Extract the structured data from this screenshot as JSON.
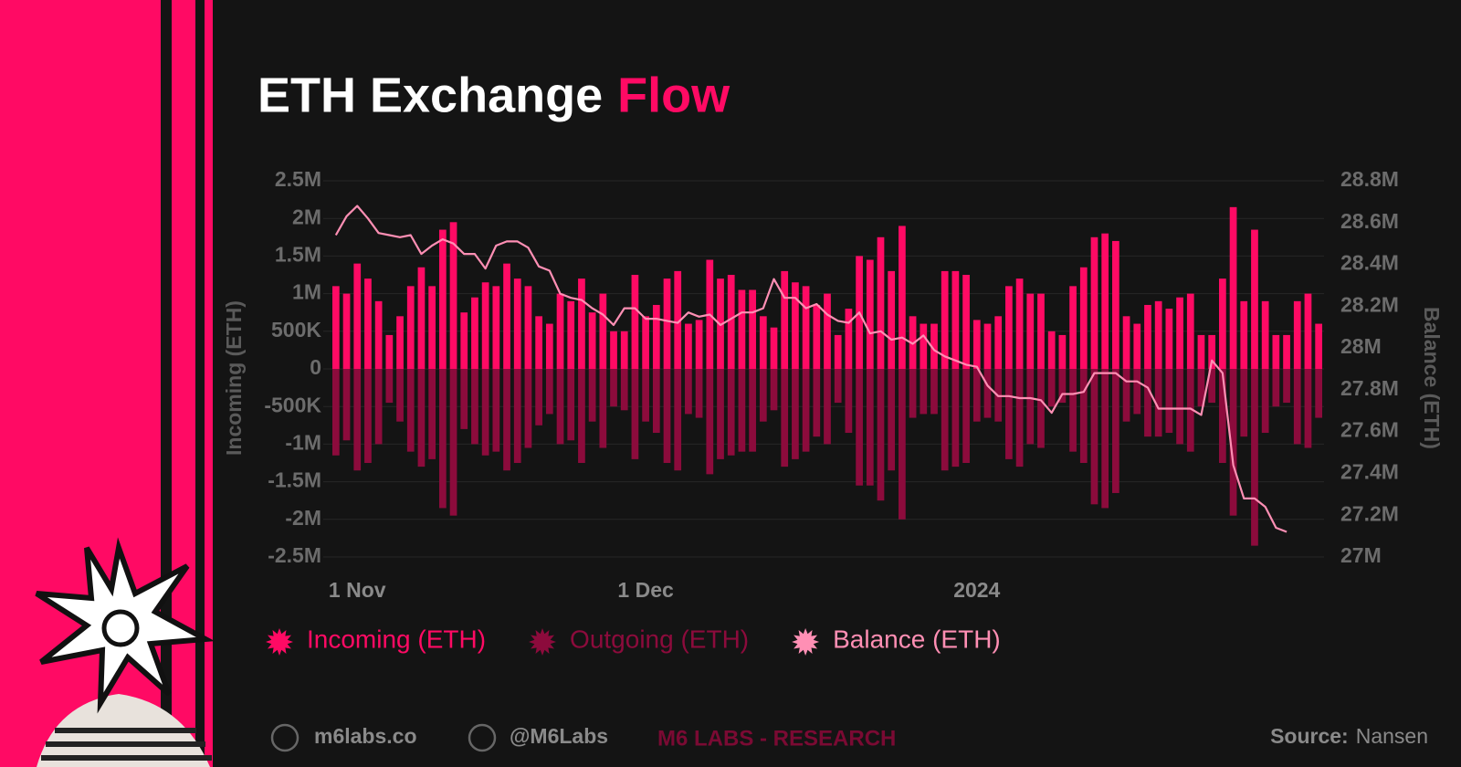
{
  "chart_data": {
    "type": "bar",
    "title": {
      "text": "ETH Exchange",
      "highlight": "Flow"
    },
    "y_label": "Incoming (ETH)",
    "y2_label": "Balance (ETH)",
    "categories": [
      null,
      null,
      "1 Nov",
      null,
      null,
      null,
      null,
      null,
      null,
      null,
      null,
      null,
      null,
      null,
      null,
      null,
      null,
      null,
      null,
      null,
      null,
      null,
      null,
      null,
      null,
      null,
      null,
      null,
      null,
      "1 Dec",
      null,
      null,
      null,
      null,
      null,
      null,
      null,
      null,
      null,
      null,
      null,
      null,
      null,
      null,
      null,
      null,
      null,
      null,
      null,
      null,
      null,
      null,
      null,
      null,
      null,
      null,
      null,
      null,
      null,
      null,
      "2024",
      null,
      null,
      null,
      null,
      null,
      null,
      null,
      null,
      null,
      null,
      null,
      null,
      null,
      null,
      null,
      null,
      null,
      null,
      null,
      null,
      null,
      null,
      null,
      null,
      null,
      null,
      null,
      null,
      null,
      null,
      null,
      null
    ],
    "series": [
      {
        "name": "Incoming (ETH)",
        "color": "#ff0a64",
        "values": [
          1100000,
          1000000,
          1400000,
          1200000,
          900000,
          450000,
          700000,
          1100000,
          1350000,
          1100000,
          1850000,
          1950000,
          750000,
          950000,
          1150000,
          1100000,
          1400000,
          1200000,
          1100000,
          700000,
          600000,
          1000000,
          900000,
          1200000,
          750000,
          1000000,
          500000,
          500000,
          1250000,
          700000,
          850000,
          1200000,
          1300000,
          600000,
          650000,
          1450000,
          1200000,
          1250000,
          1050000,
          1050000,
          700000,
          550000,
          1300000,
          1150000,
          1100000,
          850000,
          1000000,
          450000,
          800000,
          1500000,
          1450000,
          1750000,
          1300000,
          1900000,
          700000,
          600000,
          600000,
          1300000,
          1300000,
          1250000,
          650000,
          600000,
          700000,
          1100000,
          1200000,
          1000000,
          1000000,
          500000,
          450000,
          1100000,
          1350000,
          1750000,
          1800000,
          1700000,
          700000,
          600000,
          850000,
          900000,
          800000,
          950000,
          1000000,
          450000,
          450000,
          1200000,
          2150000,
          900000,
          1850000,
          900000,
          450000,
          450000,
          900000,
          1000000,
          600000
        ]
      },
      {
        "name": "Outgoing (ETH)",
        "color": "#8c0b3c",
        "values": [
          -1150000,
          -950000,
          -1350000,
          -1250000,
          -1000000,
          -450000,
          -700000,
          -1100000,
          -1300000,
          -1200000,
          -1850000,
          -1950000,
          -800000,
          -1000000,
          -1150000,
          -1100000,
          -1350000,
          -1250000,
          -1050000,
          -750000,
          -600000,
          -1000000,
          -950000,
          -1250000,
          -700000,
          -1050000,
          -500000,
          -550000,
          -1200000,
          -700000,
          -850000,
          -1250000,
          -1350000,
          -600000,
          -650000,
          -1400000,
          -1200000,
          -1150000,
          -1100000,
          -1100000,
          -700000,
          -550000,
          -1300000,
          -1200000,
          -1100000,
          -900000,
          -1000000,
          -450000,
          -850000,
          -1550000,
          -1550000,
          -1750000,
          -1350000,
          -2000000,
          -650000,
          -600000,
          -600000,
          -1350000,
          -1300000,
          -1250000,
          -700000,
          -650000,
          -700000,
          -1200000,
          -1300000,
          -1000000,
          -1050000,
          -500000,
          -450000,
          -1100000,
          -1250000,
          -1800000,
          -1850000,
          -1650000,
          -700000,
          -600000,
          -900000,
          -900000,
          -850000,
          -1000000,
          -1100000,
          -500000,
          -450000,
          -1250000,
          -1950000,
          -900000,
          -2350000,
          -850000,
          -500000,
          -450000,
          -1000000,
          -1050000,
          -650000
        ]
      },
      {
        "name": "Balance (ETH)",
        "color": "#ff8fb4",
        "axis": "y2",
        "values": [
          28540000,
          28630000,
          28680000,
          28620000,
          28550000,
          28540000,
          28530000,
          28540000,
          28450000,
          28490000,
          28520000,
          28500000,
          28450000,
          28450000,
          28380000,
          28490000,
          28510000,
          28510000,
          28480000,
          28390000,
          28370000,
          28260000,
          28240000,
          28230000,
          28190000,
          28160000,
          28110000,
          28190000,
          28190000,
          28140000,
          28140000,
          28130000,
          28120000,
          28170000,
          28150000,
          28160000,
          28110000,
          28140000,
          28170000,
          28170000,
          28190000,
          28330000,
          28240000,
          28240000,
          28190000,
          28210000,
          28160000,
          28130000,
          28120000,
          28170000,
          28070000,
          28080000,
          28040000,
          28050000,
          28020000,
          28060000,
          27990000,
          27960000,
          27940000,
          27920000,
          27910000,
          27820000,
          27770000,
          27770000,
          27760000,
          27760000,
          27750000,
          27690000,
          27780000,
          27780000,
          27790000,
          27880000,
          27880000,
          27880000,
          27840000,
          27840000,
          27810000,
          27710000,
          27710000,
          27710000,
          27710000,
          27680000,
          27940000,
          27880000,
          27440000,
          27280000,
          27280000,
          27240000,
          27140000,
          27120000,
          null,
          null,
          null
        ]
      }
    ],
    "ylim": [
      -2500000,
      2500000
    ],
    "yticks": [
      {
        "value": -2500000,
        "label": "-2.5M"
      },
      {
        "value": -2000000,
        "label": "-2M"
      },
      {
        "value": -1500000,
        "label": "-1.5M"
      },
      {
        "value": -1000000,
        "label": "-1M"
      },
      {
        "value": -500000,
        "label": "-500K"
      },
      0,
      {
        "value": 500000,
        "label": "500K"
      },
      {
        "value": 1000000,
        "label": "1M"
      },
      {
        "value": 1500000,
        "label": "1.5M"
      },
      {
        "value": 2000000,
        "label": "2M"
      },
      {
        "value": 2500000,
        "label": "2.5M"
      }
    ],
    "y2lim": [
      27000000,
      28800000
    ],
    "y2ticks": [
      {
        "value": 27000000,
        "label": "27M"
      },
      {
        "value": 27200000,
        "label": "27.2M"
      },
      {
        "value": 27400000,
        "label": "27.4M"
      },
      {
        "value": 27600000,
        "label": "27.6M"
      },
      {
        "value": 27800000,
        "label": "27.8M"
      },
      {
        "value": 28000000,
        "label": "28M"
      },
      {
        "value": 28200000,
        "label": "28.2M"
      },
      {
        "value": 28400000,
        "label": "28.4M"
      },
      {
        "value": 28600000,
        "label": "28.6M"
      },
      {
        "value": 28800000,
        "label": "28.8M"
      }
    ],
    "grid": true,
    "legend": "bottom-left"
  },
  "footer": {
    "site": "m6labs.co",
    "handle": "@M6Labs",
    "brand": "M6 LABS - RESEARCH",
    "source_label": "Source:",
    "source": "Nansen"
  }
}
